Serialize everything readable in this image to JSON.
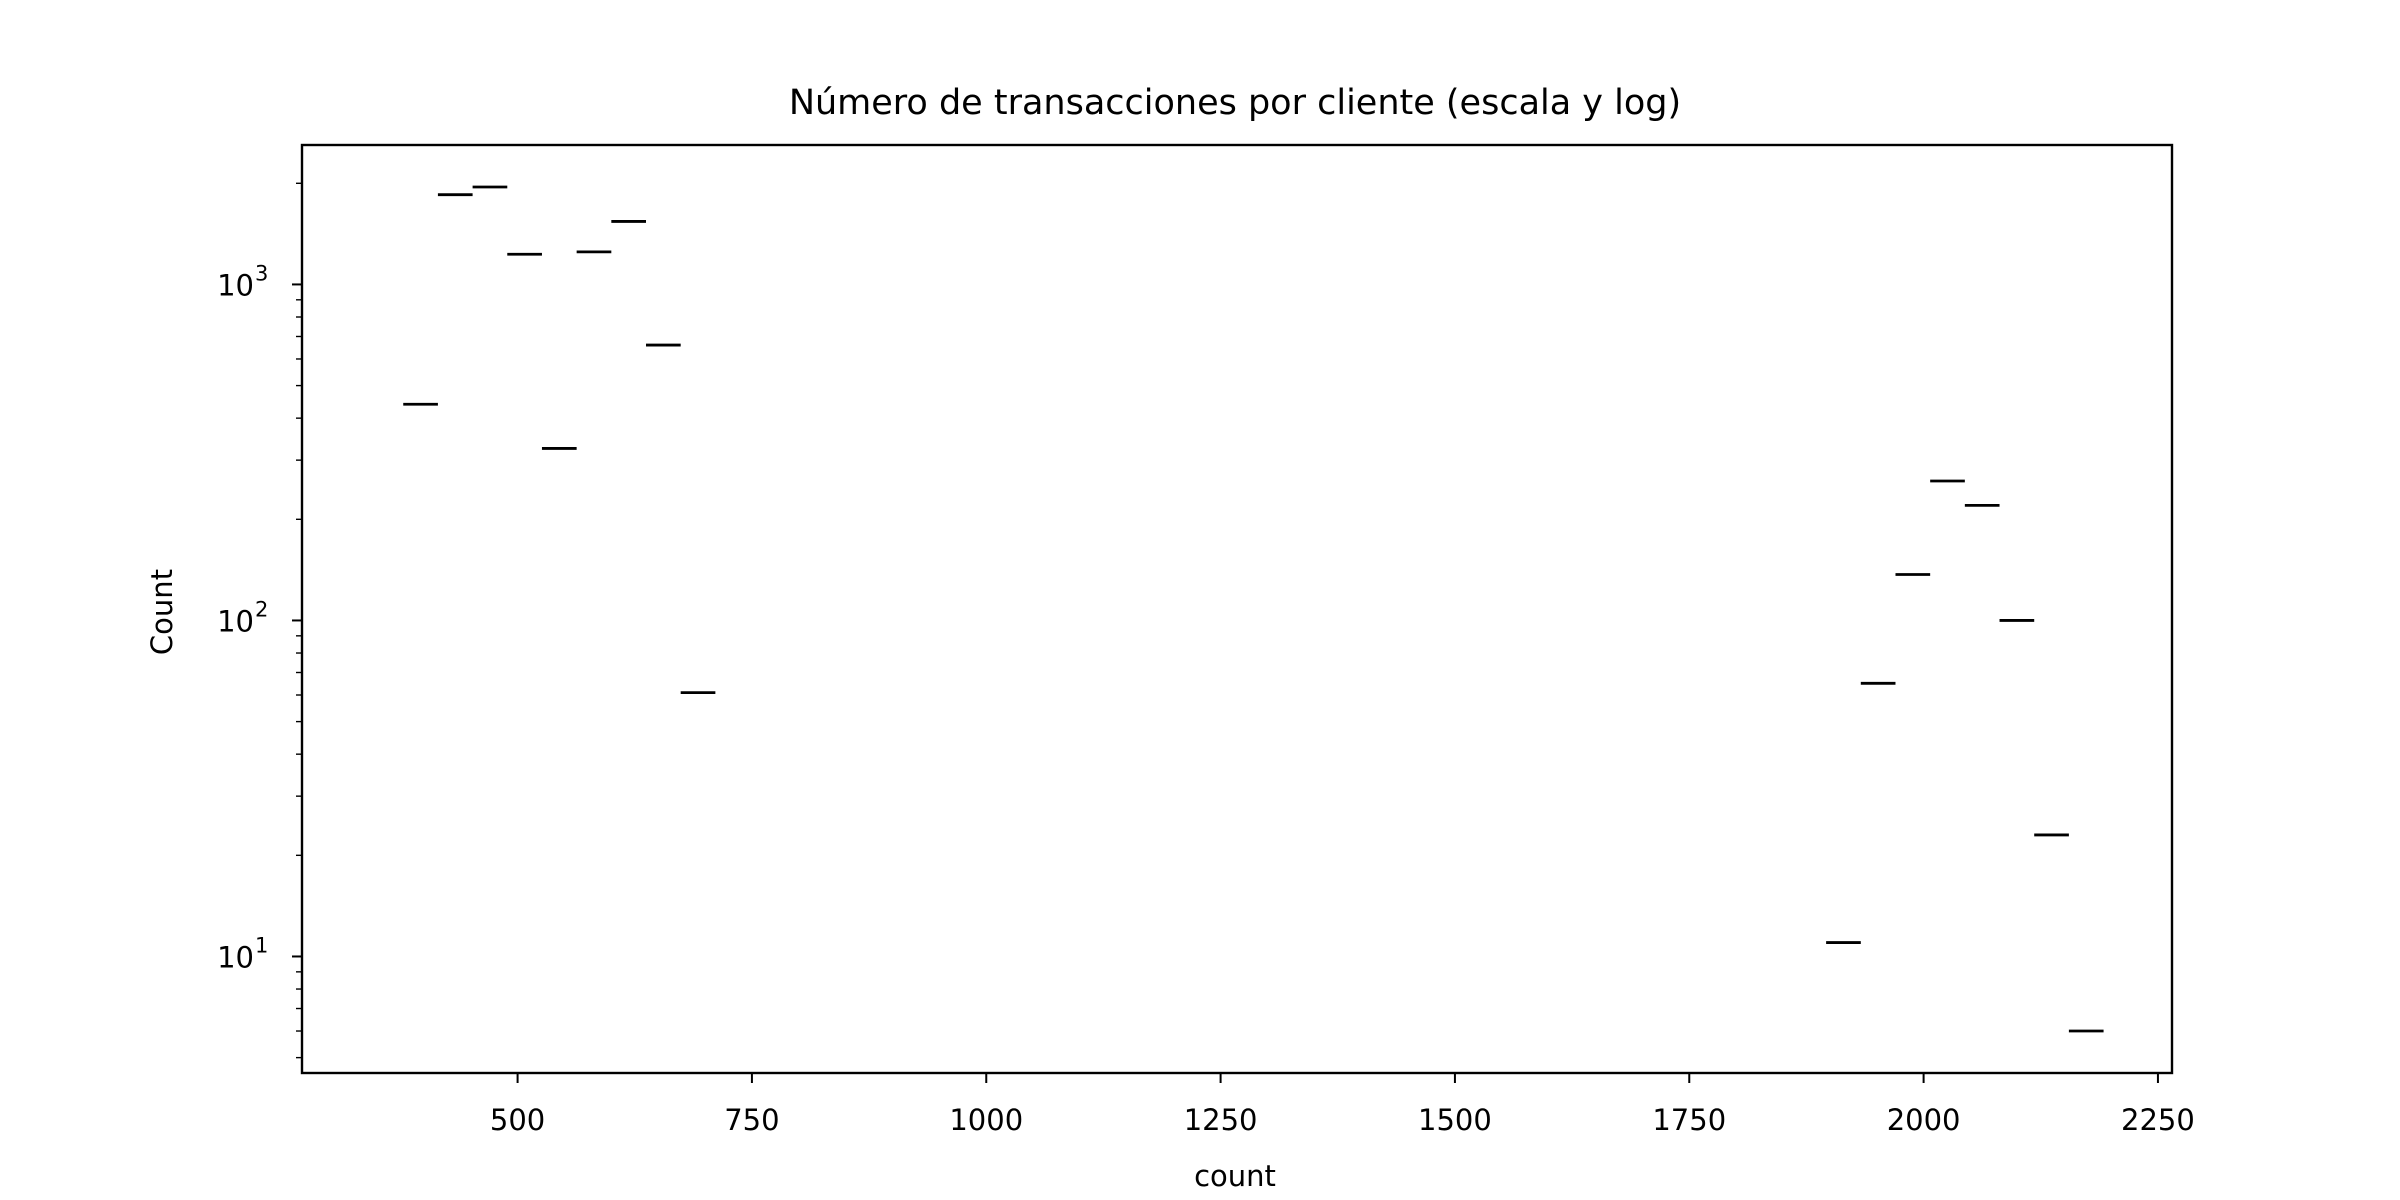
{
  "chart_data": {
    "type": "bar",
    "title": "Número de transacciones por cliente (escala y log)",
    "xlabel": "count",
    "ylabel": "Count",
    "xlim": [
      270,
      2265
    ],
    "ylim": [
      4.5,
      2600
    ],
    "yscale": "log",
    "grid": false,
    "x_ticks": [
      "500",
      "750",
      "1000",
      "1250",
      "1500",
      "1750",
      "2000",
      "2250"
    ],
    "y_ticks": [
      {
        "base": "10",
        "exp": "1",
        "value": 10
      },
      {
        "base": "10",
        "exp": "2",
        "value": 100
      },
      {
        "base": "10",
        "exp": "3",
        "value": 1000
      }
    ],
    "series": [
      {
        "bins": [
          {
            "x0": 378,
            "x1": 415,
            "value": 440
          },
          {
            "x0": 415,
            "x1": 452,
            "value": 1850
          },
          {
            "x0": 452,
            "x1": 489,
            "value": 1950
          },
          {
            "x0": 489,
            "x1": 526,
            "value": 1230
          },
          {
            "x0": 526,
            "x1": 563,
            "value": 325
          },
          {
            "x0": 563,
            "x1": 600,
            "value": 1250
          },
          {
            "x0": 600,
            "x1": 637,
            "value": 1540
          },
          {
            "x0": 637,
            "x1": 674,
            "value": 660
          },
          {
            "x0": 674,
            "x1": 711,
            "value": 61
          },
          {
            "x0": 1896,
            "x1": 1933,
            "value": 11
          },
          {
            "x0": 1933,
            "x1": 1970,
            "value": 65
          },
          {
            "x0": 1970,
            "x1": 2007,
            "value": 137
          },
          {
            "x0": 2007,
            "x1": 2044,
            "value": 260
          },
          {
            "x0": 2044,
            "x1": 2081,
            "value": 220
          },
          {
            "x0": 2081,
            "x1": 2118,
            "value": 100
          },
          {
            "x0": 2118,
            "x1": 2155,
            "value": 23
          },
          {
            "x0": 2155,
            "x1": 2192,
            "value": 6
          }
        ]
      }
    ]
  }
}
